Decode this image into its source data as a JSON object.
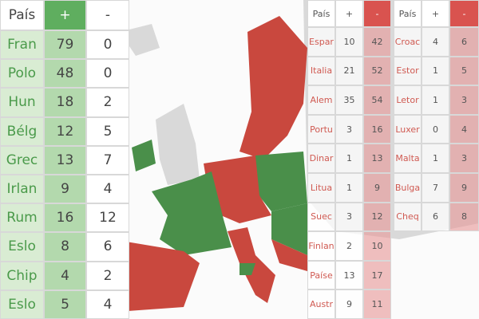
{
  "tables": [
    {
      "header": [
        "País",
        "+",
        "-"
      ],
      "rows": [
        [
          "Fran",
          79,
          0
        ],
        [
          "Polo",
          48,
          0
        ],
        [
          "Hun",
          18,
          2
        ],
        [
          "Bélg",
          12,
          5
        ],
        [
          "Grec",
          13,
          7
        ],
        [
          "Irlan",
          9,
          4
        ],
        [
          "Rum",
          16,
          12
        ],
        [
          "Eslo",
          8,
          6
        ],
        [
          "Chip",
          4,
          2
        ],
        [
          "Eslo",
          5,
          4
        ]
      ]
    },
    {
      "header": [
        "País",
        "+",
        "-"
      ],
      "rows": [
        [
          "Espar",
          10,
          42
        ],
        [
          "Italia",
          21,
          52
        ],
        [
          "Alem",
          35,
          54
        ],
        [
          "Portu",
          3,
          16
        ],
        [
          "Dinar",
          1,
          13
        ],
        [
          "Litua",
          1,
          9
        ],
        [
          "Suec",
          3,
          12
        ],
        [
          "Finlan",
          2,
          10
        ],
        [
          "Paíse",
          13,
          17
        ],
        [
          "Austr",
          9,
          11
        ]
      ]
    },
    {
      "header": [
        "País",
        "+",
        "-"
      ],
      "rows": [
        [
          "Croac",
          4,
          6
        ],
        [
          "Estor",
          1,
          5
        ],
        [
          "Letor",
          1,
          3
        ],
        [
          "Luxer",
          0,
          4
        ],
        [
          "Malta",
          1,
          3
        ],
        [
          "Bulga",
          7,
          9
        ],
        [
          "Cheq",
          6,
          8
        ]
      ]
    }
  ]
}
